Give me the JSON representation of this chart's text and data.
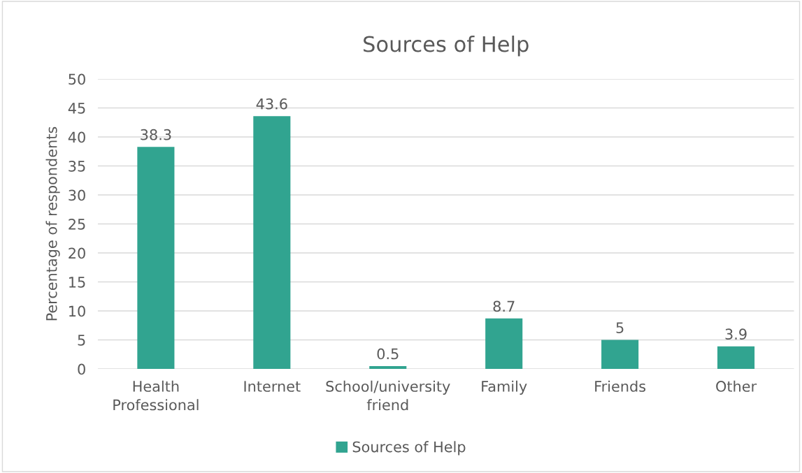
{
  "chart_data": {
    "type": "bar",
    "title": "Sources of Help",
    "ylabel": "Percentage of respondents",
    "categories": [
      "Health\nProfessional",
      "Internet",
      "School/university\nfriend",
      "Family",
      "Friends",
      "Other"
    ],
    "series": [
      {
        "name": "Sources of Help",
        "color": "#31a490",
        "values": [
          38.3,
          43.6,
          0.5,
          8.7,
          5,
          3.9
        ]
      }
    ],
    "ylim": [
      0,
      50
    ],
    "yticks": [
      0,
      5,
      10,
      15,
      20,
      25,
      30,
      35,
      40,
      45,
      50
    ],
    "grid": "y",
    "legend": "bottom",
    "data_labels": true
  }
}
